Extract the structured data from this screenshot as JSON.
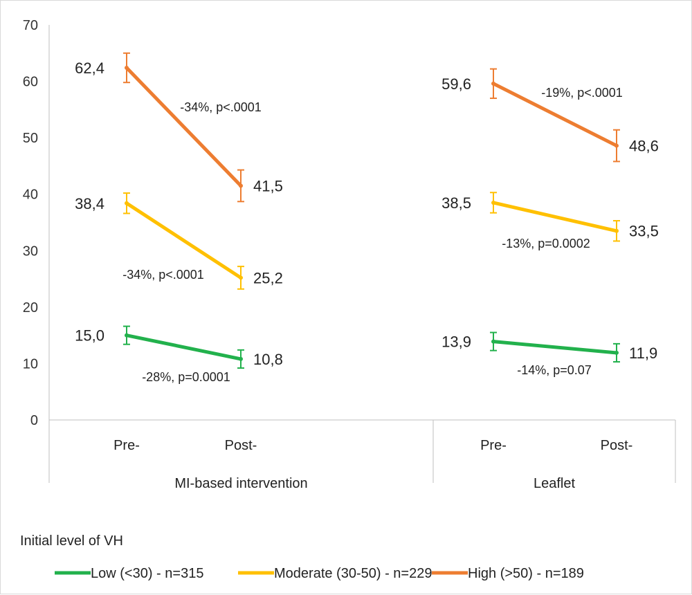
{
  "chart_data": {
    "type": "line",
    "ylim": [
      0,
      70
    ],
    "yticks": [
      0,
      10,
      20,
      30,
      40,
      50,
      60,
      70
    ],
    "grid": false,
    "groups": [
      {
        "label": "MI-based intervention",
        "x": [
          "Pre-",
          "Post-"
        ]
      },
      {
        "label": "Leaflet",
        "x": [
          "Pre-",
          "Post-"
        ]
      }
    ],
    "series": [
      {
        "name": "Low (<30) - n=315",
        "color": "#22b14c",
        "values": [
          [
            15.0,
            10.8
          ],
          [
            13.9,
            11.9
          ]
        ],
        "labels": [
          [
            "15,0",
            "10,8"
          ],
          [
            "13,9",
            "11,9"
          ]
        ],
        "error": [
          [
            1.6,
            1.6
          ],
          [
            1.6,
            1.6
          ]
        ],
        "annotations": [
          "-28%, p=0.0001",
          "-14%, p=0.07"
        ]
      },
      {
        "name": "Moderate (30-50) - n=229",
        "color": "#ffc000",
        "values": [
          [
            38.4,
            25.2
          ],
          [
            38.5,
            33.5
          ]
        ],
        "labels": [
          [
            "38,4",
            "25,2"
          ],
          [
            "38,5",
            "33,5"
          ]
        ],
        "error": [
          [
            1.8,
            2.0
          ],
          [
            1.8,
            1.8
          ]
        ],
        "annotations": [
          "-34%, p<.0001",
          "-13%, p=0.0002"
        ]
      },
      {
        "name": "High (>50) - n=189",
        "color": "#ed7d31",
        "values": [
          [
            62.4,
            41.5
          ],
          [
            59.6,
            48.6
          ]
        ],
        "labels": [
          [
            "62,4",
            "41,5"
          ],
          [
            "59,6",
            "48,6"
          ]
        ],
        "error": [
          [
            2.6,
            2.8
          ],
          [
            2.6,
            2.8
          ]
        ],
        "annotations": [
          "-34%, p<.0001",
          "-19%, p<.0001"
        ]
      }
    ],
    "legend": {
      "title": "Initial level of VH",
      "position": "bottom"
    }
  }
}
